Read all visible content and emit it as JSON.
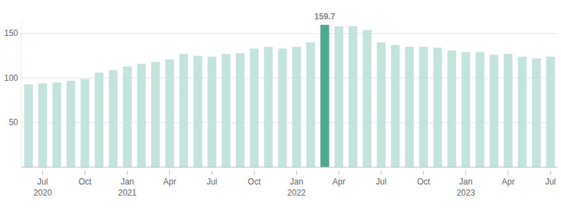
{
  "chart_data": {
    "type": "bar",
    "categories": [
      null,
      "Jul 2020",
      null,
      null,
      "Oct",
      null,
      null,
      "Jan 2021",
      null,
      null,
      "Apr",
      null,
      null,
      "Jul",
      null,
      null,
      "Oct",
      null,
      null,
      "Jan 2022",
      null,
      null,
      "Apr",
      null,
      null,
      "Jul",
      null,
      null,
      "Oct",
      null,
      null,
      "Jan 2023",
      null,
      null,
      "Apr",
      null,
      null,
      "Jul"
    ],
    "values": [
      93,
      94,
      95,
      97,
      99,
      106,
      109,
      113,
      116,
      118,
      121,
      127,
      125,
      124,
      127,
      128,
      133,
      135,
      133,
      135,
      140,
      159.7,
      158,
      158,
      154,
      140,
      137,
      135,
      135,
      134,
      131,
      129,
      129,
      126,
      127,
      124,
      122,
      124
    ],
    "value_labels": [
      null,
      null,
      null,
      null,
      null,
      null,
      null,
      null,
      null,
      null,
      null,
      null,
      null,
      null,
      null,
      null,
      null,
      null,
      null,
      null,
      null,
      "159.7",
      null,
      null,
      null,
      null,
      null,
      null,
      null,
      null,
      null,
      null,
      null,
      null,
      null,
      null,
      null,
      null
    ],
    "colors": [
      "#c4e3dc",
      "#c4e3dc",
      "#c4e3dc",
      "#c4e3dc",
      "#c4e3dc",
      "#c4e3dc",
      "#c4e3dc",
      "#c4e3dc",
      "#c4e3dc",
      "#c4e3dc",
      "#c4e3dc",
      "#c4e3dc",
      "#c4e3dc",
      "#c4e3dc",
      "#c4e3dc",
      "#c4e3dc",
      "#c4e3dc",
      "#c4e3dc",
      "#c4e3dc",
      "#c4e3dc",
      "#c4e3dc",
      "#4fa88f",
      "#c4e3dc",
      "#c4e3dc",
      "#c4e3dc",
      "#c4e3dc",
      "#c4e3dc",
      "#c4e3dc",
      "#c4e3dc",
      "#c4e3dc",
      "#c4e3dc",
      "#c4e3dc",
      "#c4e3dc",
      "#c4e3dc",
      "#c4e3dc",
      "#c4e3dc",
      "#c4e3dc",
      "#c4e3dc"
    ],
    "ylim": [
      0,
      165
    ],
    "yticks": [
      50,
      100,
      150
    ],
    "grid": true
  }
}
